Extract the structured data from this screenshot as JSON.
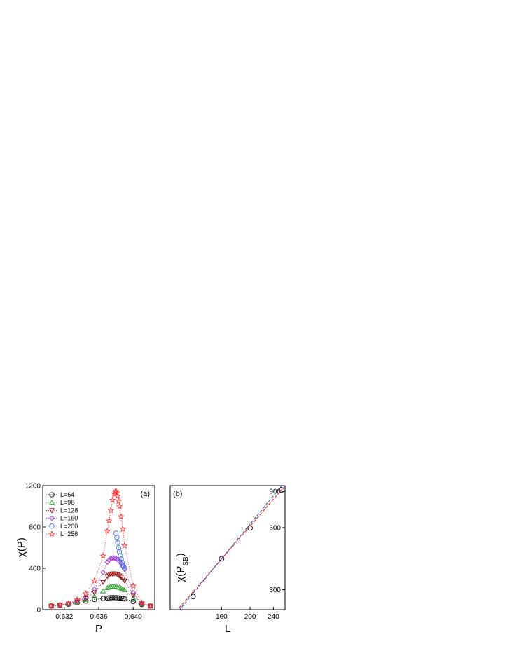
{
  "chart_data": [
    {
      "type": "scatter",
      "panel_label": "(a)",
      "xlabel": "P",
      "ylabel": "χ(P)",
      "xlim": [
        0.6295,
        0.6425
      ],
      "ylim": [
        0,
        1200
      ],
      "xticks": [
        0.632,
        0.636,
        0.64
      ],
      "xtick_labels": [
        "0.632",
        "0.636",
        "0.640"
      ],
      "yticks": [
        0,
        400,
        800,
        1200
      ],
      "ytick_labels": [
        "0",
        "400",
        "800",
        "1200"
      ],
      "legend_position": "top-left",
      "series": [
        {
          "name": "L=64",
          "marker": "circle",
          "color": "#000000",
          "x": [
            0.6305,
            0.6315,
            0.6325,
            0.6335,
            0.6345,
            0.6355,
            0.6365,
            0.637,
            0.6372,
            0.6374,
            0.6376,
            0.6378,
            0.638,
            0.6382,
            0.6384,
            0.6386,
            0.6388,
            0.639,
            0.64,
            0.641,
            0.642
          ],
          "y": [
            35,
            42,
            52,
            65,
            82,
            98,
            108,
            112,
            114,
            115,
            116,
            116,
            115,
            114,
            112,
            110,
            108,
            104,
            78,
            50,
            35
          ]
        },
        {
          "name": "L=96",
          "marker": "triangle-up",
          "color": "#2ca02c",
          "x": [
            0.6305,
            0.6315,
            0.6325,
            0.6335,
            0.6345,
            0.6355,
            0.6365,
            0.637,
            0.6372,
            0.6374,
            0.6376,
            0.6378,
            0.638,
            0.6382,
            0.6384,
            0.6386,
            0.6388,
            0.639,
            0.64,
            0.641,
            0.642
          ],
          "y": [
            35,
            43,
            55,
            70,
            95,
            130,
            180,
            210,
            218,
            222,
            224,
            224,
            222,
            218,
            214,
            208,
            200,
            190,
            110,
            55,
            35
          ]
        },
        {
          "name": "L=128",
          "marker": "triangle-down",
          "color": "#8b0000",
          "x": [
            0.6305,
            0.6315,
            0.6325,
            0.6335,
            0.6345,
            0.6355,
            0.6365,
            0.637,
            0.6372,
            0.6374,
            0.6376,
            0.6378,
            0.638,
            0.6382,
            0.6384,
            0.6386,
            0.6388,
            0.639,
            0.64,
            0.641,
            0.642
          ],
          "y": [
            35,
            44,
            57,
            76,
            108,
            165,
            265,
            322,
            335,
            343,
            347,
            348,
            345,
            338,
            328,
            315,
            298,
            280,
            140,
            58,
            35
          ]
        },
        {
          "name": "L=160",
          "marker": "diamond",
          "color": "#9932cc",
          "x": [
            0.6305,
            0.6315,
            0.6325,
            0.6335,
            0.6345,
            0.6355,
            0.6365,
            0.637,
            0.6372,
            0.6374,
            0.6376,
            0.6378,
            0.638,
            0.6382,
            0.6384,
            0.6386,
            0.6388,
            0.639,
            0.64,
            0.641,
            0.642
          ],
          "y": [
            35,
            45,
            60,
            82,
            120,
            200,
            360,
            460,
            480,
            495,
            500,
            500,
            495,
            485,
            470,
            448,
            420,
            390,
            165,
            60,
            35
          ]
        },
        {
          "name": "L=200",
          "marker": "circle",
          "color": "#4169e1",
          "x": [
            0.638,
            0.6381,
            0.6382,
            0.6383,
            0.6384,
            0.6385,
            0.6386,
            0.6387,
            0.6388,
            0.6389,
            0.639
          ],
          "y": [
            740,
            700,
            650,
            600,
            560,
            520,
            490,
            460,
            430,
            415,
            400
          ]
        },
        {
          "name": "L=256",
          "marker": "star",
          "color": "#ff3030",
          "x": [
            0.6305,
            0.6315,
            0.6325,
            0.6335,
            0.6345,
            0.6355,
            0.6365,
            0.637,
            0.6372,
            0.6374,
            0.6376,
            0.6378,
            0.6379,
            0.638,
            0.6381,
            0.6382,
            0.6383,
            0.6384,
            0.6386,
            0.6388,
            0.639,
            0.64,
            0.641,
            0.642
          ],
          "y": [
            35,
            45,
            60,
            95,
            155,
            280,
            520,
            760,
            860,
            960,
            1060,
            1120,
            1140,
            1145,
            1130,
            1100,
            1050,
            1000,
            900,
            780,
            620,
            230,
            65,
            35
          ]
        }
      ]
    },
    {
      "type": "scatter",
      "panel_label": "(b)",
      "xlabel": "L",
      "ylabel": "χ(P",
      "ylabel_subscript": "SB",
      "ylabel_close": ")",
      "xlim": [
        107,
        263
      ],
      "ylim": [
        240,
        960
      ],
      "log_x": true,
      "log_y": true,
      "xticks": [
        160,
        200,
        240
      ],
      "xtick_labels": [
        "160",
        "200",
        "240"
      ],
      "yticks": [
        300,
        600,
        900
      ],
      "ytick_labels": [
        "300",
        "600",
        "900"
      ],
      "points": {
        "marker": "circle",
        "color": "#000000",
        "x": [
          128,
          160,
          200,
          256
        ],
        "y": [
          278,
          424,
          598,
          915
        ]
      },
      "fit_lines": [
        {
          "color": "#ff0000",
          "style": "dashed",
          "x": [
            107,
            263
          ],
          "y": [
            218,
            958
          ]
        },
        {
          "color": "#1f3bd6",
          "style": "dashed",
          "x": [
            107,
            263
          ],
          "y": [
            211,
            1003
          ]
        }
      ]
    }
  ]
}
